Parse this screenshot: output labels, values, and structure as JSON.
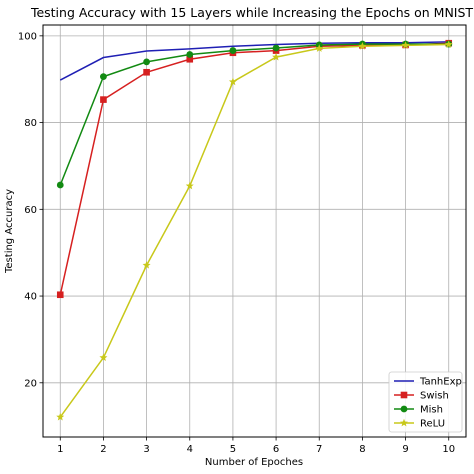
{
  "chart_data": {
    "type": "line",
    "title": "Testing Accuracy with 15 Layers while Increasing the Epochs on MNIST",
    "xlabel": "Number of Epoches",
    "ylabel": "Testing Accuracy",
    "x": [
      1,
      2,
      3,
      4,
      5,
      6,
      7,
      8,
      9,
      10
    ],
    "xlim": [
      0.6,
      10.4
    ],
    "ylim": [
      7.5,
      102.5
    ],
    "xticks": [
      "1",
      "2",
      "3",
      "4",
      "5",
      "6",
      "7",
      "8",
      "9",
      "10"
    ],
    "yticks": [
      "20",
      "40",
      "60",
      "80",
      "100"
    ],
    "ytick_values": [
      20,
      40,
      60,
      80,
      100
    ],
    "grid": true,
    "legend_position": "lower-right",
    "series": [
      {
        "name": "TanhExp",
        "color": "#1f1fb4",
        "marker": "none",
        "values": [
          89.8,
          95.0,
          96.5,
          97.0,
          97.6,
          98.0,
          98.3,
          98.4,
          98.4,
          98.6
        ]
      },
      {
        "name": "Swish",
        "color": "#d62020",
        "marker": "square",
        "values": [
          40.3,
          85.3,
          91.6,
          94.6,
          96.1,
          96.6,
          97.6,
          97.8,
          97.9,
          98.3
        ]
      },
      {
        "name": "Mish",
        "color": "#128a12",
        "marker": "circle",
        "values": [
          65.6,
          90.6,
          94.0,
          95.7,
          96.6,
          97.2,
          97.9,
          98.1,
          98.1,
          98.1
        ]
      },
      {
        "name": "ReLU",
        "color": "#c8c81a",
        "marker": "star",
        "values": [
          12.1,
          25.8,
          47.1,
          65.4,
          89.4,
          95.1,
          97.1,
          97.6,
          97.8,
          98.0
        ]
      }
    ]
  }
}
